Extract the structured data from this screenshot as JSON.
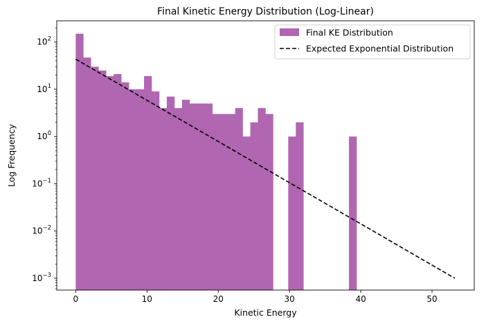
{
  "chart_data": {
    "type": "histogram",
    "title": "Final Kinetic Energy Distribution (Log-Linear)",
    "xlabel": "Kinetic Energy",
    "ylabel": "Log Frequency",
    "xlim": [
      -2.66,
      55.92
    ],
    "ylim_log10": [
      -3.25,
      2.45
    ],
    "yscale": "log",
    "bin_width": 1.065,
    "bin_start": 0,
    "x_ticks": [
      {
        "value": 0,
        "label": "0"
      },
      {
        "value": 10,
        "label": "10"
      },
      {
        "value": 20,
        "label": "20"
      },
      {
        "value": 30,
        "label": "30"
      },
      {
        "value": 40,
        "label": "40"
      },
      {
        "value": 50,
        "label": "50"
      }
    ],
    "y_ticks": [
      {
        "value": 100,
        "base": "10",
        "exp": "2"
      },
      {
        "value": 10,
        "base": "10",
        "exp": "1"
      },
      {
        "value": 1,
        "base": "10",
        "exp": "0"
      },
      {
        "value": 0.1,
        "base": "10",
        "exp": "−1"
      },
      {
        "value": 0.01,
        "base": "10",
        "exp": "−2"
      },
      {
        "value": 0.001,
        "base": "10",
        "exp": "−3"
      }
    ],
    "series": [
      {
        "name": "Final KE Distribution",
        "kind": "bars",
        "color": "#b066b0",
        "counts": [
          150,
          47,
          30,
          25,
          19,
          21,
          14,
          10,
          10,
          19,
          9,
          4,
          7,
          4,
          6,
          5,
          5,
          5,
          3,
          3,
          3,
          4,
          1,
          2,
          4,
          3,
          0,
          0,
          1,
          2,
          0,
          0,
          0,
          0,
          0,
          0,
          1,
          0,
          0,
          0,
          0,
          0,
          0,
          0,
          0,
          0,
          0,
          0,
          0,
          0,
          0,
          0,
          0,
          0,
          0,
          0,
          0,
          0,
          0,
          0,
          0,
          0,
          0,
          0,
          0,
          0,
          0,
          0,
          0,
          0,
          0,
          0,
          0,
          0,
          0,
          0,
          0,
          0,
          0,
          0,
          0,
          0,
          0,
          0,
          0,
          0,
          0,
          0,
          0,
          0,
          0,
          0,
          0,
          0,
          0,
          0,
          0,
          0,
          0,
          0
        ]
      },
      {
        "name": "Expected Exponential Distribution",
        "kind": "line",
        "color": "#000000",
        "dash": "dashed",
        "x": [
          0,
          53.2
        ],
        "y": [
          43.5,
          0.001
        ]
      }
    ],
    "legend_position": "top-right"
  }
}
